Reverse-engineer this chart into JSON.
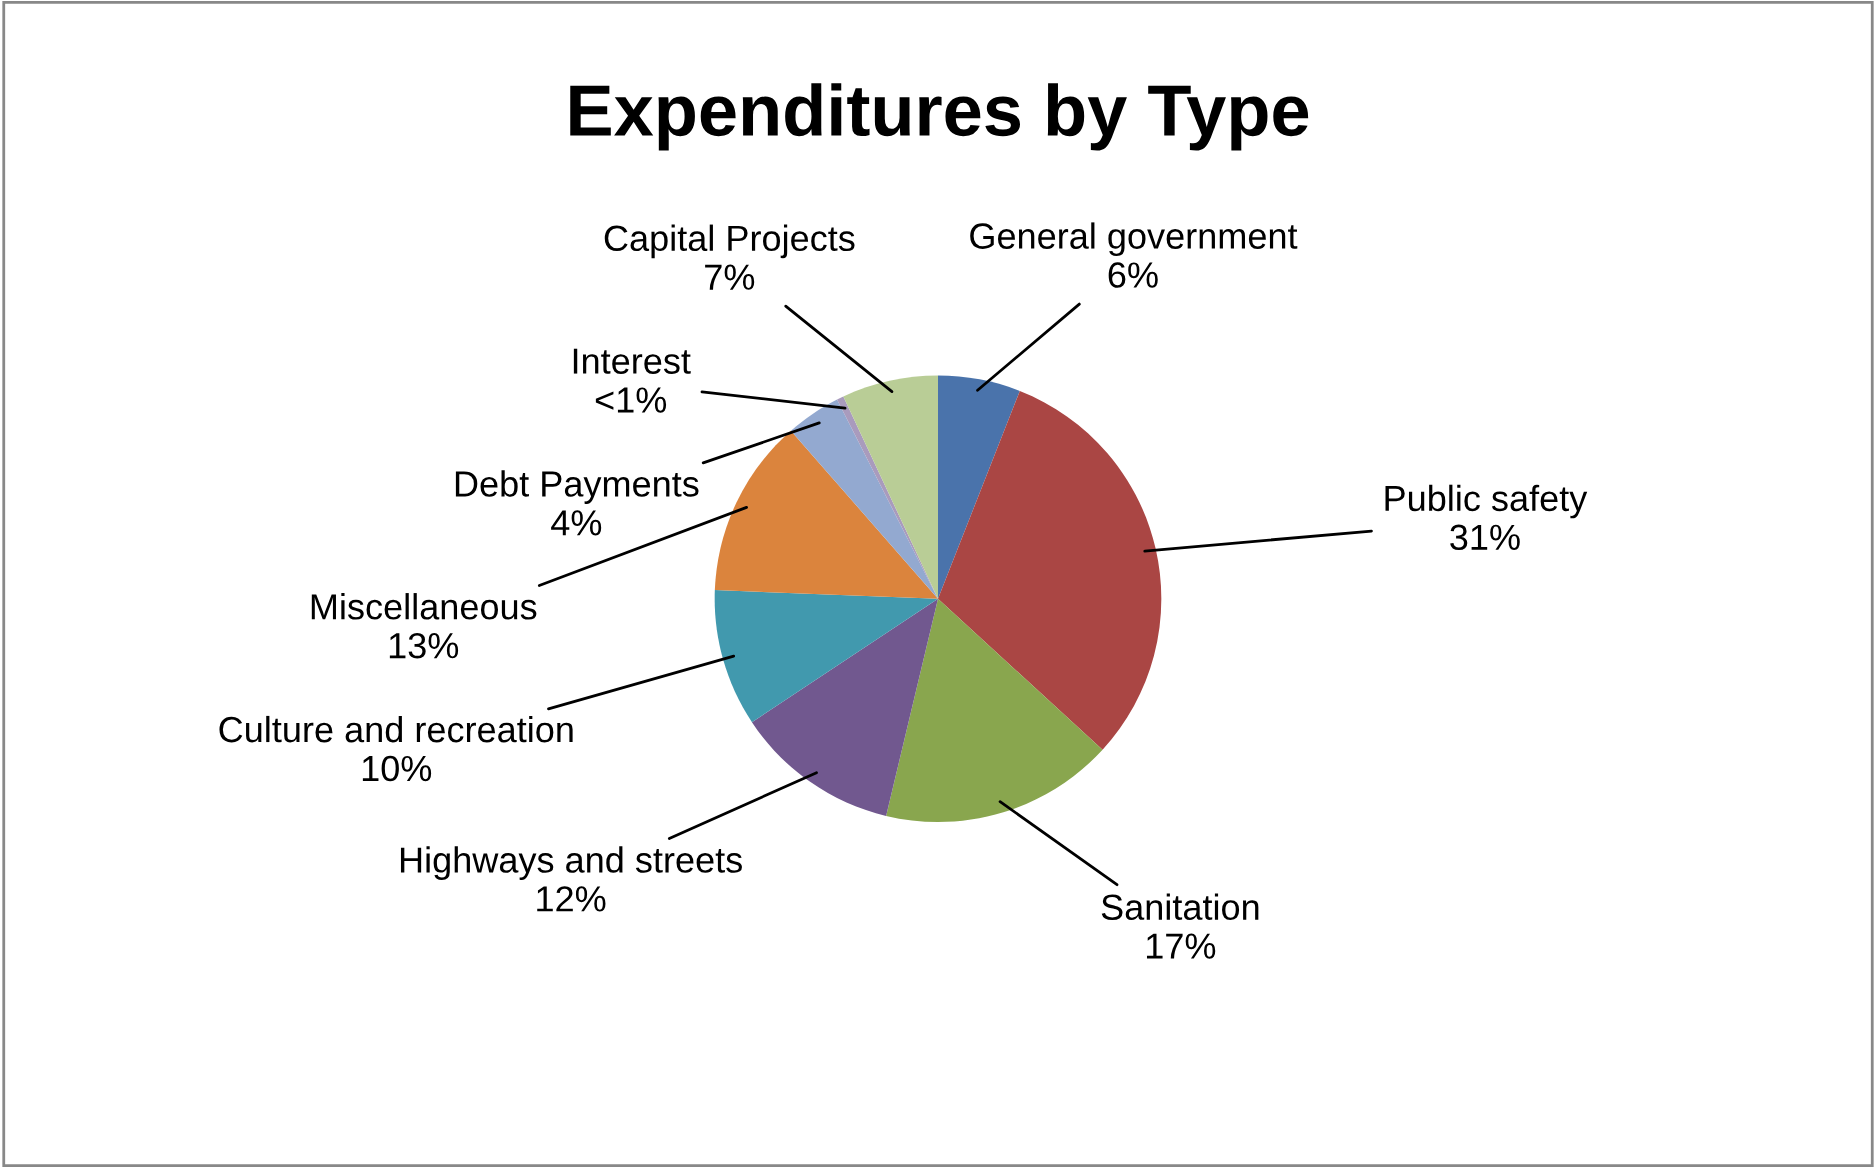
{
  "chart_data": {
    "type": "pie",
    "title": "Expenditures by Type",
    "categories": [
      "General government",
      "Public safety",
      "Sanitation",
      "Highways and streets",
      "Culture and recreation",
      "Miscellaneous",
      "Debt Payments",
      "Interest",
      "Capital Projects"
    ],
    "values": [
      6,
      31,
      17,
      12,
      10,
      13,
      4,
      0.5,
      7
    ],
    "value_labels": [
      "6%",
      "31%",
      "17%",
      "12%",
      "10%",
      "13%",
      "4%",
      "<1%",
      "7%"
    ],
    "colors": [
      "#4a73ab",
      "#aa4644",
      "#89a64e",
      "#71588f",
      "#4199ae",
      "#db843d",
      "#93a9d0",
      "#a99bbd",
      "#b9cd96"
    ],
    "legend": false
  }
}
